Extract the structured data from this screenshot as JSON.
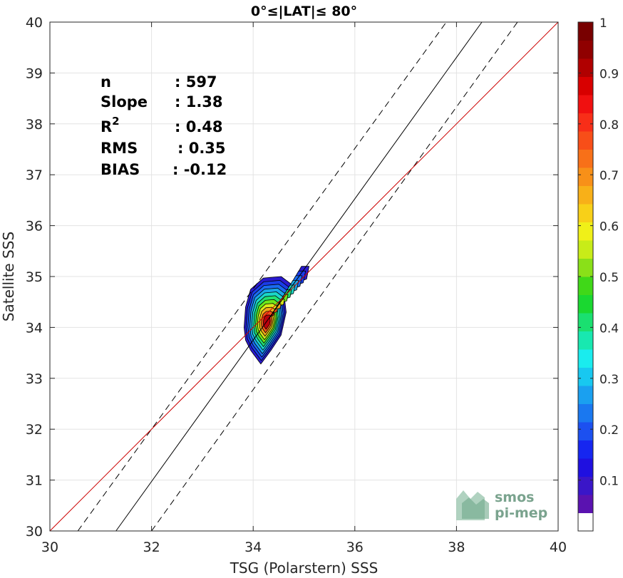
{
  "chart_data": {
    "type": "heatmap",
    "subtype": "density-contour-scatter",
    "title": "0°≤|LAT|≤ 80°",
    "xlabel": "TSG (Polarstern) SSS",
    "ylabel": "Satellite SSS",
    "xlim": [
      30,
      40
    ],
    "ylim": [
      30,
      40
    ],
    "xticks": [
      "30",
      "32",
      "34",
      "36",
      "38",
      "40"
    ],
    "yticks": [
      "30",
      "31",
      "32",
      "33",
      "34",
      "35",
      "36",
      "37",
      "38",
      "39",
      "40"
    ],
    "grid": true,
    "stats": [
      {
        "label": "n",
        "value": ": 597"
      },
      {
        "label": "Slope",
        "value": ": 1.38"
      },
      {
        "label": "R",
        "sup": "2",
        "value": ": 0.48"
      },
      {
        "label": "RMS",
        "value": ": 0.35"
      },
      {
        "label": "BIAS",
        "value": ": -0.12"
      }
    ],
    "lines": {
      "identity": {
        "x": [
          30,
          40
        ],
        "y": [
          30,
          40
        ],
        "color": "#cc0000"
      },
      "fit": {
        "x": [
          31.3,
          38.5
        ],
        "y": [
          30,
          40
        ],
        "color": "#000000"
      },
      "fit_upper": {
        "x": [
          30.55,
          37.8
        ],
        "y": [
          30,
          40
        ],
        "color": "#000000",
        "style": "dashed"
      },
      "fit_lower": {
        "x": [
          32.0,
          39.2
        ],
        "y": [
          30,
          40
        ],
        "color": "#000000",
        "style": "dashed"
      }
    },
    "density": {
      "peak": {
        "x": 34.25,
        "y": 34.05
      },
      "levels": [
        0.05,
        0.1,
        0.15,
        0.2,
        0.3,
        0.4,
        0.5,
        0.6,
        0.7,
        0.8,
        0.9
      ],
      "level_colors": [
        "#2a1ad0",
        "#1a3ce8",
        "#1a6cf0",
        "#1aa6e8",
        "#1ad8c8",
        "#22e070",
        "#6ce81a",
        "#d8e81a",
        "#f0a818",
        "#f05018",
        "#b8000c"
      ]
    },
    "colorbar": {
      "min": 0,
      "max": 1,
      "ticks": [
        "0.1",
        "0.2",
        "0.3",
        "0.4",
        "0.5",
        "0.6",
        "0.7",
        "0.8",
        "0.9",
        "1"
      ],
      "colors": [
        "#ffffff",
        "#5a12b0",
        "#3a16c8",
        "#1f10e0",
        "#1626f0",
        "#1c50f0",
        "#1a78f0",
        "#1aa0f0",
        "#18c8f0",
        "#1aecee",
        "#18e8b0",
        "#1ae070",
        "#1ad830",
        "#40d818",
        "#8ae018",
        "#c8ec18",
        "#f0f018",
        "#f8d018",
        "#f8b018",
        "#f89018",
        "#f87018",
        "#f84e18",
        "#f82e18",
        "#f01010",
        "#d80000",
        "#b00000",
        "#900000",
        "#780000"
      ]
    }
  },
  "logo": {
    "line1": "smos",
    "line2": "pi-mep"
  }
}
